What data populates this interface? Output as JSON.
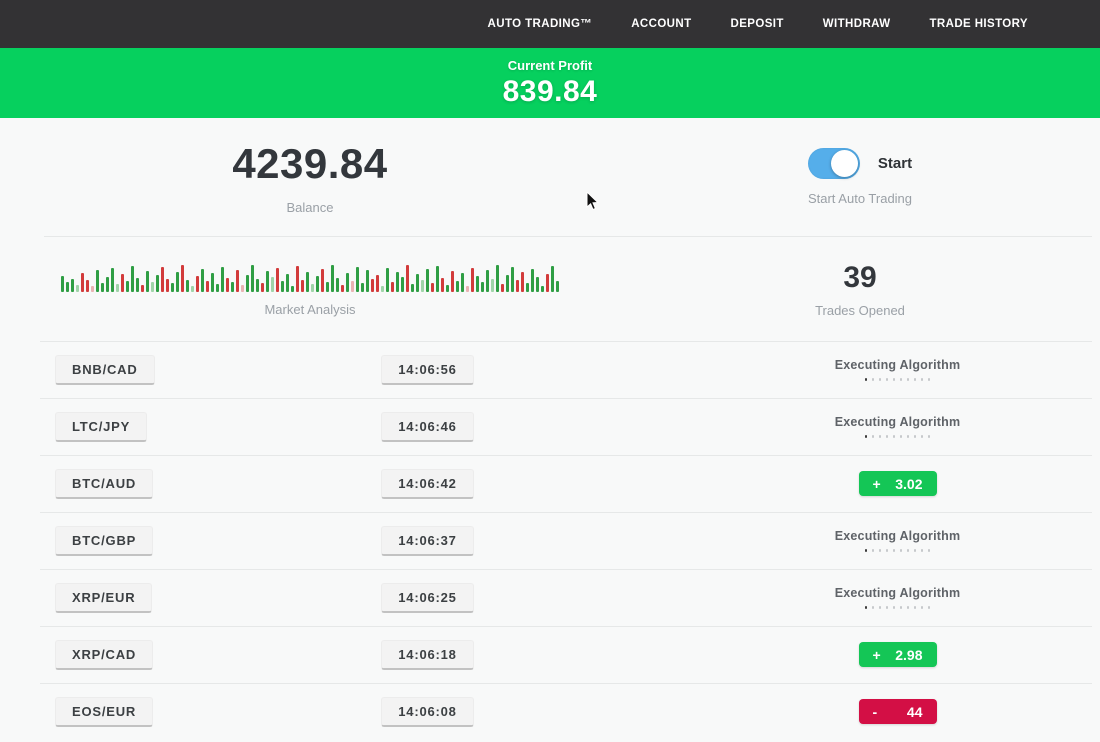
{
  "navbar": {
    "items": [
      "AUTO TRADING™",
      "ACCOUNT",
      "DEPOSIT",
      "WITHDRAW",
      "TRADE HISTORY"
    ]
  },
  "banner": {
    "label": "Current Profit",
    "value": "839.84"
  },
  "stats": {
    "balance_value": "4239.84",
    "balance_label": "Balance",
    "toggle_label": "Start",
    "toggle_state": "on",
    "toggle_caption": "Start Auto Trading",
    "trades_opened_value": "39",
    "trades_opened_label": "Trades Opened"
  },
  "chart_data": {
    "type": "bar",
    "title": "Market Analysis",
    "ylabel": "",
    "xlabel": "",
    "legend": false,
    "grid": false,
    "note": "decorative market-activity bar strip, heights in px (6-28), color keys: g=green r=red lg=light-green lr=light-red",
    "colors": {
      "g": "#2f9e44",
      "r": "#d23b3b",
      "lg": "#9fd3a8",
      "lr": "#e8b2b2"
    },
    "bars": [
      [
        16,
        "g"
      ],
      [
        10,
        "g"
      ],
      [
        13,
        "g"
      ],
      [
        7,
        "lg"
      ],
      [
        19,
        "r"
      ],
      [
        12,
        "r"
      ],
      [
        6,
        "lr"
      ],
      [
        22,
        "g"
      ],
      [
        9,
        "g"
      ],
      [
        15,
        "g"
      ],
      [
        24,
        "g"
      ],
      [
        8,
        "lg"
      ],
      [
        18,
        "r"
      ],
      [
        11,
        "g"
      ],
      [
        26,
        "g"
      ],
      [
        14,
        "g"
      ],
      [
        7,
        "r"
      ],
      [
        21,
        "g"
      ],
      [
        10,
        "lg"
      ],
      [
        17,
        "g"
      ],
      [
        25,
        "r"
      ],
      [
        13,
        "r"
      ],
      [
        9,
        "g"
      ],
      [
        20,
        "g"
      ],
      [
        27,
        "r"
      ],
      [
        12,
        "g"
      ],
      [
        6,
        "lg"
      ],
      [
        16,
        "r"
      ],
      [
        23,
        "g"
      ],
      [
        11,
        "r"
      ],
      [
        19,
        "g"
      ],
      [
        8,
        "g"
      ],
      [
        25,
        "g"
      ],
      [
        14,
        "r"
      ],
      [
        10,
        "g"
      ],
      [
        22,
        "r"
      ],
      [
        7,
        "lr"
      ],
      [
        17,
        "g"
      ],
      [
        27,
        "g"
      ],
      [
        13,
        "g"
      ],
      [
        9,
        "r"
      ],
      [
        21,
        "g"
      ],
      [
        15,
        "lg"
      ],
      [
        24,
        "r"
      ],
      [
        11,
        "g"
      ],
      [
        18,
        "g"
      ],
      [
        6,
        "g"
      ],
      [
        26,
        "r"
      ],
      [
        12,
        "r"
      ],
      [
        20,
        "g"
      ],
      [
        8,
        "lg"
      ],
      [
        16,
        "g"
      ],
      [
        23,
        "r"
      ],
      [
        10,
        "g"
      ],
      [
        27,
        "g"
      ],
      [
        14,
        "g"
      ],
      [
        7,
        "r"
      ],
      [
        19,
        "g"
      ],
      [
        11,
        "lr"
      ],
      [
        25,
        "g"
      ],
      [
        9,
        "g"
      ],
      [
        22,
        "g"
      ],
      [
        13,
        "r"
      ],
      [
        17,
        "r"
      ],
      [
        6,
        "lg"
      ],
      [
        24,
        "g"
      ],
      [
        10,
        "r"
      ],
      [
        20,
        "g"
      ],
      [
        15,
        "g"
      ],
      [
        27,
        "r"
      ],
      [
        8,
        "g"
      ],
      [
        18,
        "g"
      ],
      [
        12,
        "lg"
      ],
      [
        23,
        "g"
      ],
      [
        9,
        "r"
      ],
      [
        26,
        "g"
      ],
      [
        14,
        "r"
      ],
      [
        7,
        "g"
      ],
      [
        21,
        "r"
      ],
      [
        11,
        "g"
      ],
      [
        19,
        "g"
      ],
      [
        6,
        "lr"
      ],
      [
        24,
        "r"
      ],
      [
        16,
        "g"
      ],
      [
        10,
        "g"
      ],
      [
        22,
        "g"
      ],
      [
        13,
        "lg"
      ],
      [
        27,
        "g"
      ],
      [
        8,
        "r"
      ],
      [
        17,
        "g"
      ],
      [
        25,
        "g"
      ],
      [
        12,
        "r"
      ],
      [
        20,
        "r"
      ],
      [
        9,
        "g"
      ],
      [
        23,
        "g"
      ],
      [
        15,
        "g"
      ],
      [
        6,
        "g"
      ],
      [
        18,
        "r"
      ],
      [
        26,
        "g"
      ],
      [
        11,
        "g"
      ]
    ]
  },
  "trades": {
    "status_dots": 10,
    "rows": [
      {
        "pair": "BNB/CAD",
        "time": "14:06:56",
        "status": "executing",
        "status_label": "Executing Algorithm"
      },
      {
        "pair": "LTC/JPY",
        "time": "14:06:46",
        "status": "executing",
        "status_label": "Executing Algorithm"
      },
      {
        "pair": "BTC/AUD",
        "time": "14:06:42",
        "status": "profit",
        "result_sign": "+",
        "result_value": "3.02"
      },
      {
        "pair": "BTC/GBP",
        "time": "14:06:37",
        "status": "executing",
        "status_label": "Executing Algorithm"
      },
      {
        "pair": "XRP/EUR",
        "time": "14:06:25",
        "status": "executing",
        "status_label": "Executing Algorithm"
      },
      {
        "pair": "XRP/CAD",
        "time": "14:06:18",
        "status": "profit",
        "result_sign": "+",
        "result_value": "2.98"
      },
      {
        "pair": "EOS/EUR",
        "time": "14:06:08",
        "status": "loss",
        "result_sign": "-",
        "result_value": "44"
      }
    ]
  },
  "colors": {
    "navbar_bg": "#333234",
    "banner_green": "#06d05e",
    "profit_green": "#14c656",
    "loss_red": "#d30f45",
    "toggle_blue": "#55aeea",
    "text_dark": "#33373c",
    "label_gray": "#9aa0a6"
  }
}
